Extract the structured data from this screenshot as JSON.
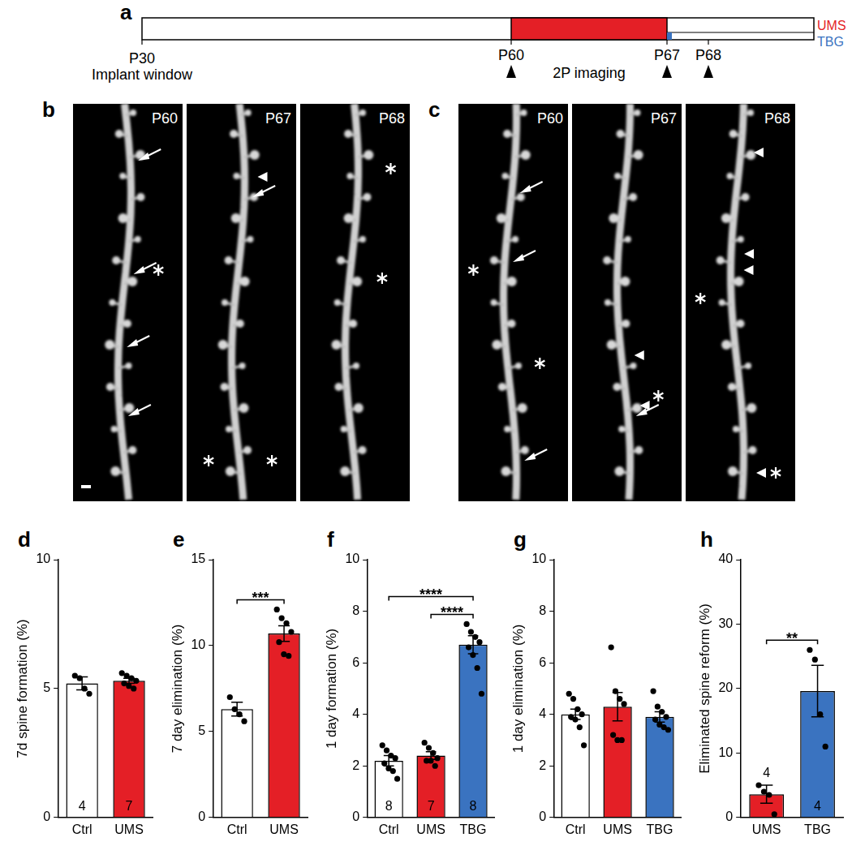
{
  "timeline": {
    "panel": "a",
    "days": [
      "P30",
      "P60",
      "P67",
      "P68"
    ],
    "start_note": "Implant window",
    "imaging_note": "2P imaging",
    "series": [
      {
        "name": "UMS",
        "color": "#e41f26"
      },
      {
        "name": "TBG",
        "color": "#3a73c0"
      }
    ]
  },
  "images": [
    {
      "panel": "b",
      "frames": [
        "P60",
        "P67",
        "P68"
      ]
    },
    {
      "panel": "c",
      "frames": [
        "P60",
        "P67",
        "P68"
      ]
    }
  ],
  "chart_data": [
    {
      "type": "bar",
      "panel": "d",
      "y_label": "7d spine formation (%)",
      "categories": [
        "Ctrl",
        "UMS"
      ],
      "values": [
        5.2,
        5.3
      ],
      "errors": [
        0.25,
        0.1
      ],
      "points": [
        [
          5.5,
          5.4,
          5.0,
          4.8
        ],
        [
          5.6,
          5.5,
          5.4,
          5.3,
          5.2,
          5.1,
          5.0
        ]
      ],
      "n": [
        4,
        7
      ],
      "colors": [
        "#ffffff",
        "#e41f26"
      ],
      "ylim": [
        0,
        10
      ],
      "yticks": [
        0,
        5,
        10
      ],
      "grid": false,
      "significance": []
    },
    {
      "type": "bar",
      "panel": "e",
      "y_label": "7 day elimination (%)",
      "categories": [
        "Ctrl",
        "UMS"
      ],
      "values": [
        6.3,
        10.7
      ],
      "errors": [
        0.4,
        0.45
      ],
      "points": [
        [
          7.0,
          6.3,
          6.0,
          5.6
        ],
        [
          12.1,
          11.6,
          11.3,
          10.8,
          10.2,
          9.5,
          9.4
        ]
      ],
      "n": [],
      "colors": [
        "#ffffff",
        "#e41f26"
      ],
      "ylim": [
        0,
        15
      ],
      "yticks": [
        0,
        5,
        10,
        15
      ],
      "grid": false,
      "significance": [
        {
          "from": "Ctrl",
          "to": "UMS",
          "label": "***"
        }
      ]
    },
    {
      "type": "bar",
      "panel": "f",
      "y_label": "1 day formation (%)",
      "categories": [
        "Ctrl",
        "UMS",
        "TBG"
      ],
      "values": [
        2.2,
        2.4,
        6.7
      ],
      "errors": [
        0.2,
        0.15,
        0.35
      ],
      "points": [
        [
          2.8,
          2.6,
          2.4,
          2.3,
          2.1,
          1.9,
          1.8,
          1.5
        ],
        [
          2.9,
          2.7,
          2.5,
          2.3,
          2.2,
          2.2,
          2.0
        ],
        [
          7.5,
          7.2,
          7.0,
          6.8,
          6.6,
          6.3,
          5.8,
          4.8
        ]
      ],
      "n": [
        8,
        7,
        8
      ],
      "colors": [
        "#ffffff",
        "#e41f26",
        "#3a73c0"
      ],
      "ylim": [
        0,
        10
      ],
      "yticks": [
        0,
        2,
        4,
        6,
        8,
        10
      ],
      "grid": false,
      "significance": [
        {
          "from": "UMS",
          "to": "TBG",
          "label": "****"
        },
        {
          "from": "Ctrl",
          "to": "TBG",
          "label": "****"
        }
      ]
    },
    {
      "type": "bar",
      "panel": "g",
      "y_label": "1 day elimination (%)",
      "categories": [
        "Ctrl",
        "UMS",
        "TBG"
      ],
      "values": [
        4.0,
        4.3,
        3.9
      ],
      "errors": [
        0.2,
        0.55,
        0.2
      ],
      "points": [
        [
          4.8,
          4.6,
          4.2,
          4.0,
          3.9,
          3.8,
          3.5,
          2.8
        ],
        [
          6.6,
          4.9,
          4.6,
          4.4,
          3.2,
          3.0,
          3.0
        ],
        [
          4.9,
          4.3,
          4.1,
          3.9,
          3.8,
          3.6,
          3.5,
          3.4
        ]
      ],
      "n": [],
      "colors": [
        "#ffffff",
        "#e41f26",
        "#3a73c0"
      ],
      "ylim": [
        0,
        10
      ],
      "yticks": [
        0,
        2,
        4,
        6,
        8,
        10
      ],
      "grid": false,
      "significance": []
    },
    {
      "type": "bar",
      "panel": "h",
      "y_label": "Eliminated spine reform (%)",
      "categories": [
        "UMS",
        "TBG"
      ],
      "values": [
        3.6,
        19.6
      ],
      "errors": [
        1.4,
        4.0
      ],
      "points": [
        [
          5.0,
          4.0,
          3.5,
          0.5
        ],
        [
          26.0,
          24.5,
          16.0,
          11.0
        ]
      ],
      "n": [
        4,
        4
      ],
      "colors": [
        "#e41f26",
        "#3a73c0"
      ],
      "ylim": [
        0,
        40
      ],
      "yticks": [
        0,
        10,
        20,
        30,
        40
      ],
      "grid": false,
      "significance": [
        {
          "from": "UMS",
          "to": "TBG",
          "label": "**"
        }
      ]
    }
  ]
}
